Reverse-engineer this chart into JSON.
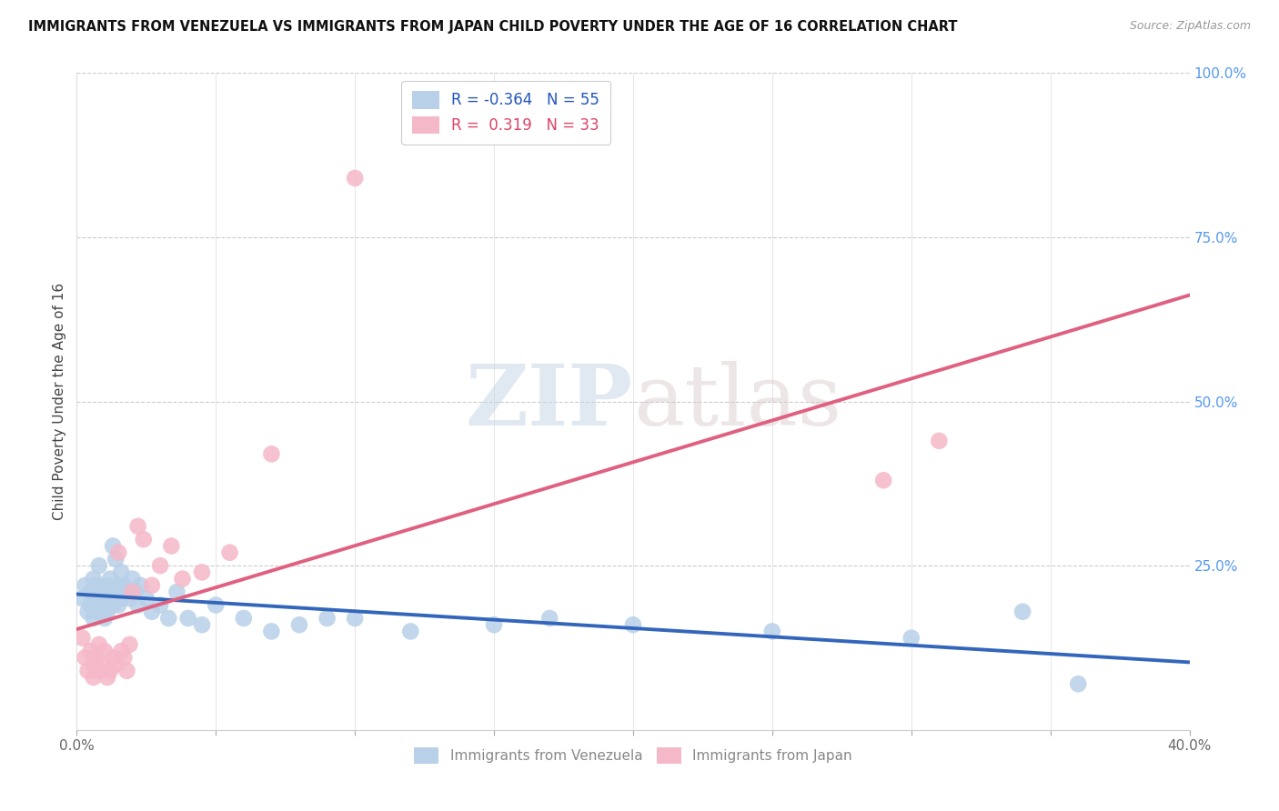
{
  "title": "IMMIGRANTS FROM VENEZUELA VS IMMIGRANTS FROM JAPAN CHILD POVERTY UNDER THE AGE OF 16 CORRELATION CHART",
  "source": "Source: ZipAtlas.com",
  "ylabel": "Child Poverty Under the Age of 16",
  "watermark_zip": "ZIP",
  "watermark_atlas": "atlas",
  "xlim": [
    0.0,
    0.4
  ],
  "ylim": [
    0.0,
    1.0
  ],
  "xtick_positions": [
    0.0,
    0.05,
    0.1,
    0.15,
    0.2,
    0.25,
    0.3,
    0.35,
    0.4
  ],
  "xticklabels": [
    "0.0%",
    "",
    "",
    "",
    "",
    "",
    "",
    "",
    "40.0%"
  ],
  "ytick_positions": [
    0.0,
    0.25,
    0.5,
    0.75,
    1.0
  ],
  "yticklabels_right": [
    "",
    "25.0%",
    "50.0%",
    "75.0%",
    "100.0%"
  ],
  "legend1_label": "Immigrants from Venezuela",
  "legend2_label": "Immigrants from Japan",
  "series1_color": "#b8d0e8",
  "series2_color": "#f5b8c8",
  "series1_line_color": "#3366bb",
  "series2_line_color": "#e06080",
  "legend1_R": "-0.364",
  "legend1_N": "55",
  "legend2_R": "0.319",
  "legend2_N": "33",
  "venezuela_x": [
    0.002,
    0.003,
    0.004,
    0.005,
    0.005,
    0.006,
    0.006,
    0.007,
    0.007,
    0.008,
    0.008,
    0.009,
    0.009,
    0.01,
    0.01,
    0.011,
    0.011,
    0.012,
    0.012,
    0.013,
    0.013,
    0.014,
    0.014,
    0.015,
    0.015,
    0.016,
    0.016,
    0.017,
    0.018,
    0.019,
    0.02,
    0.021,
    0.022,
    0.023,
    0.025,
    0.027,
    0.03,
    0.033,
    0.036,
    0.04,
    0.045,
    0.05,
    0.06,
    0.07,
    0.08,
    0.09,
    0.1,
    0.12,
    0.15,
    0.17,
    0.2,
    0.25,
    0.3,
    0.34,
    0.36
  ],
  "venezuela_y": [
    0.2,
    0.22,
    0.18,
    0.21,
    0.19,
    0.23,
    0.17,
    0.2,
    0.22,
    0.18,
    0.25,
    0.19,
    0.21,
    0.17,
    0.2,
    0.22,
    0.18,
    0.2,
    0.23,
    0.19,
    0.28,
    0.21,
    0.26,
    0.22,
    0.19,
    0.2,
    0.24,
    0.22,
    0.21,
    0.2,
    0.23,
    0.21,
    0.19,
    0.22,
    0.2,
    0.18,
    0.19,
    0.17,
    0.21,
    0.17,
    0.16,
    0.19,
    0.17,
    0.15,
    0.16,
    0.17,
    0.17,
    0.15,
    0.16,
    0.17,
    0.16,
    0.15,
    0.14,
    0.18,
    0.07
  ],
  "japan_x": [
    0.002,
    0.003,
    0.004,
    0.005,
    0.006,
    0.006,
    0.007,
    0.008,
    0.008,
    0.009,
    0.01,
    0.011,
    0.012,
    0.013,
    0.014,
    0.015,
    0.016,
    0.017,
    0.018,
    0.019,
    0.02,
    0.022,
    0.024,
    0.027,
    0.03,
    0.034,
    0.038,
    0.045,
    0.055,
    0.07,
    0.1,
    0.29,
    0.31
  ],
  "japan_y": [
    0.14,
    0.11,
    0.09,
    0.12,
    0.1,
    0.08,
    0.11,
    0.09,
    0.13,
    0.1,
    0.12,
    0.08,
    0.09,
    0.11,
    0.1,
    0.27,
    0.12,
    0.11,
    0.09,
    0.13,
    0.21,
    0.31,
    0.29,
    0.22,
    0.25,
    0.28,
    0.23,
    0.24,
    0.27,
    0.42,
    0.84,
    0.38,
    0.44
  ],
  "background_color": "#ffffff",
  "grid_color": "#d0d0d0"
}
